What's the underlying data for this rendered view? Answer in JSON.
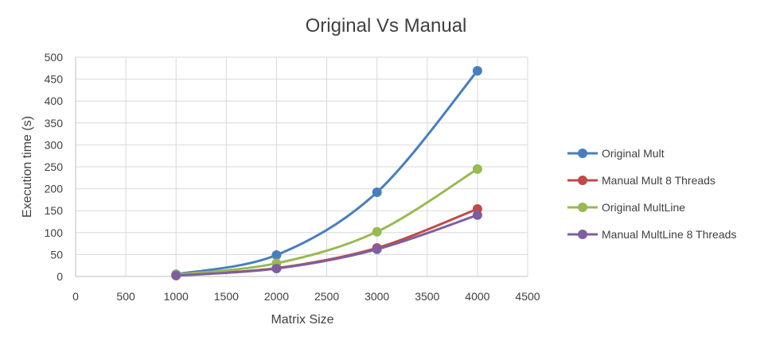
{
  "chart_data": {
    "type": "scatter",
    "title": "Original Vs Manual",
    "xlabel": "Matrix  Size",
    "ylabel": "Execution time (s)",
    "xlim": [
      0,
      4500
    ],
    "ylim": [
      0,
      500
    ],
    "x_ticks": [
      0,
      500,
      1000,
      1500,
      2000,
      2500,
      3000,
      3500,
      4000,
      4500
    ],
    "y_ticks": [
      0,
      50,
      100,
      150,
      200,
      250,
      300,
      350,
      400,
      450,
      500
    ],
    "grid": true,
    "legend_position": "right",
    "smooth_lines": true,
    "series": [
      {
        "name": "Original Mult",
        "color": "#4a7ebb",
        "x": [
          1000,
          2000,
          3000,
          4000
        ],
        "y": [
          5,
          49,
          192,
          469
        ]
      },
      {
        "name": "Manual Mult 8 Threads",
        "color": "#be4b48",
        "x": [
          1000,
          2000,
          3000,
          4000
        ],
        "y": [
          3,
          19,
          65,
          154
        ]
      },
      {
        "name": "Original MultLine",
        "color": "#98b954",
        "x": [
          1000,
          2000,
          3000,
          4000
        ],
        "y": [
          4,
          30,
          102,
          245
        ]
      },
      {
        "name": "Manual MultLine 8 Threads",
        "color": "#7d5fa0",
        "x": [
          1000,
          2000,
          3000,
          4000
        ],
        "y": [
          2,
          18,
          62,
          140
        ]
      }
    ]
  }
}
